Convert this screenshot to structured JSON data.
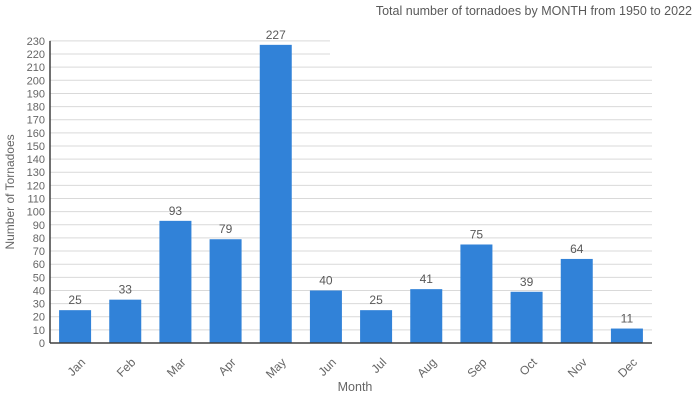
{
  "chart_data": {
    "type": "bar",
    "title": "Total number of tornadoes by MONTH from 1950 to 2022",
    "categories": [
      "Jan",
      "Feb",
      "Mar",
      "Apr",
      "May",
      "Jun",
      "Jul",
      "Aug",
      "Sep",
      "Oct",
      "Nov",
      "Dec"
    ],
    "values": [
      25,
      33,
      93,
      79,
      227,
      40,
      25,
      41,
      75,
      39,
      64,
      11
    ],
    "xlabel": "Month",
    "ylabel": "Number of Tornadoes",
    "ylim": [
      0,
      230
    ],
    "ytick_step": 10,
    "grid": true,
    "legend": "none",
    "value_labels_shown": true,
    "xtick_rotation_deg": -45,
    "colors": {
      "bar": "#3182D8",
      "title_text": "#595959",
      "tick_text": "#666666",
      "value_label_text": "#595959",
      "axis_title_text": "#666666",
      "axis_line": "#404040",
      "gridline": "#D9D9D9",
      "background": "#FFFFFF"
    }
  }
}
